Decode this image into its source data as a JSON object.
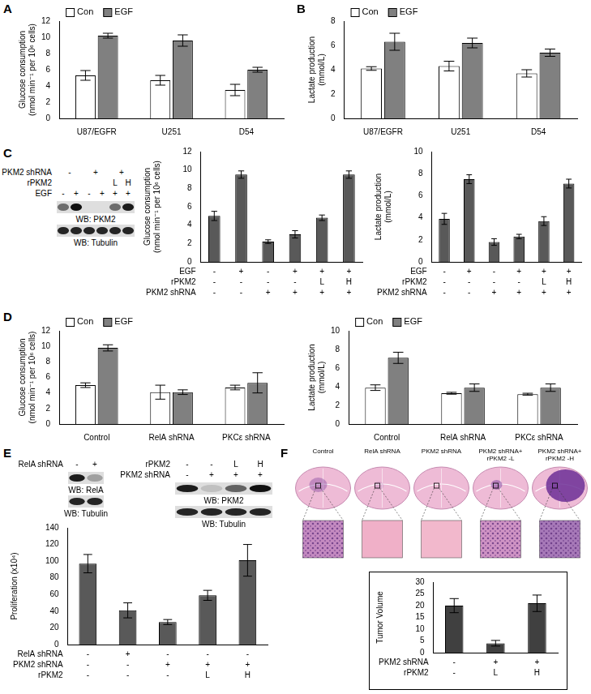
{
  "chart_data": [
    {
      "type": "bar",
      "y_label": [
        "Glucose consumption",
        "(nmol min⁻¹ per 10⁶ cells)"
      ],
      "categories": [
        "U87/EGFR",
        "U251",
        "D54"
      ],
      "series": [
        {
          "name": "Con",
          "color": "#ffffff",
          "values": [
            5.3,
            4.7,
            3.5
          ],
          "errors": [
            0.6,
            0.6,
            0.7
          ]
        },
        {
          "name": "EGF",
          "color": "#808080",
          "values": [
            10.2,
            9.6,
            6.0
          ],
          "errors": [
            0.3,
            0.7,
            0.3
          ]
        }
      ],
      "ylim": [
        0,
        12
      ],
      "yticks": [
        0,
        2,
        4,
        6,
        8,
        10,
        12
      ],
      "grid": false,
      "legend": "top-left"
    },
    {
      "type": "bar",
      "y_label": [
        "Lactate production",
        "(mmol/L)"
      ],
      "categories": [
        "U87/EGFR",
        "U251",
        "D54"
      ],
      "series": [
        {
          "name": "Con",
          "color": "#ffffff",
          "values": [
            4.1,
            4.3,
            3.7
          ],
          "errors": [
            0.15,
            0.4,
            0.3
          ]
        },
        {
          "name": "EGF",
          "color": "#808080",
          "values": [
            6.3,
            6.2,
            5.4
          ],
          "errors": [
            0.7,
            0.4,
            0.3
          ]
        }
      ],
      "ylim": [
        0,
        8
      ],
      "yticks": [
        0,
        2,
        4,
        6,
        8
      ],
      "grid": false,
      "legend": "top-left"
    },
    {
      "type": "bar",
      "y_label": [
        "Glucose consumption",
        "(nmol min⁻¹ per 10⁶ cells)"
      ],
      "categories": [
        null,
        null,
        null,
        null,
        null,
        null
      ],
      "values": [
        5.0,
        9.5,
        2.2,
        3.0,
        4.8,
        9.5
      ],
      "errors": [
        0.5,
        0.4,
        0.2,
        0.4,
        0.3,
        0.4
      ],
      "color": "#595959",
      "ylim": [
        0,
        12
      ],
      "yticks": [
        0,
        2,
        4,
        6,
        8,
        10,
        12
      ],
      "grid": false,
      "conditions": [
        {
          "name": "EGF",
          "marks": [
            "-",
            "+",
            "-",
            "+",
            "+",
            "+"
          ]
        },
        {
          "name": "rPKM2",
          "marks": [
            "-",
            "-",
            "-",
            "-",
            "L",
            "H"
          ]
        },
        {
          "name": "PKM2 shRNA",
          "marks": [
            "-",
            "-",
            "+",
            "+",
            "+",
            "+"
          ]
        }
      ]
    },
    {
      "type": "bar",
      "y_label": [
        "Lactate production",
        "(mmol/L)"
      ],
      "categories": [
        null,
        null,
        null,
        null,
        null,
        null
      ],
      "values": [
        3.9,
        7.5,
        1.8,
        2.3,
        3.7,
        7.1
      ],
      "errors": [
        0.5,
        0.4,
        0.3,
        0.2,
        0.4,
        0.4
      ],
      "color": "#595959",
      "ylim": [
        0,
        10
      ],
      "yticks": [
        0,
        2,
        4,
        6,
        8,
        10
      ],
      "grid": false,
      "conditions": [
        {
          "name": "EGF",
          "marks": [
            "-",
            "+",
            "-",
            "+",
            "+",
            "+"
          ]
        },
        {
          "name": "rPKM2",
          "marks": [
            "-",
            "-",
            "-",
            "-",
            "L",
            "H"
          ]
        },
        {
          "name": "PKM2 shRNA",
          "marks": [
            "-",
            "-",
            "+",
            "+",
            "+",
            "+"
          ]
        }
      ]
    },
    {
      "type": "bar",
      "y_label": [
        "Glucose consumption",
        "(nmol min⁻¹ per 10⁶ cells)"
      ],
      "categories": [
        "Control",
        "RelA shRNA",
        "PKCε shRNA"
      ],
      "series": [
        {
          "name": "Con",
          "color": "#ffffff",
          "values": [
            5.0,
            4.1,
            4.7
          ],
          "errors": [
            0.3,
            0.9,
            0.3
          ]
        },
        {
          "name": "EGF",
          "color": "#808080",
          "values": [
            9.8,
            4.1,
            5.3
          ],
          "errors": [
            0.4,
            0.3,
            1.3
          ]
        }
      ],
      "ylim": [
        0,
        12
      ],
      "yticks": [
        0,
        2,
        4,
        6,
        8,
        10,
        12
      ],
      "grid": false,
      "legend": "top-left"
    },
    {
      "type": "bar",
      "y_label": [
        "Lactate production",
        "(mmol/L)"
      ],
      "categories": [
        "Control",
        "RelA shRNA",
        "PKCε shRNA"
      ],
      "series": [
        {
          "name": "Con",
          "color": "#ffffff",
          "values": [
            3.9,
            3.3,
            3.2
          ],
          "errors": [
            0.3,
            0.1,
            0.1
          ]
        },
        {
          "name": "EGF",
          "color": "#808080",
          "values": [
            7.1,
            3.9,
            3.9
          ],
          "errors": [
            0.6,
            0.4,
            0.4
          ]
        }
      ],
      "ylim": [
        0,
        10
      ],
      "yticks": [
        0,
        2,
        4,
        6,
        8,
        10
      ],
      "grid": false,
      "legend": "top-left"
    },
    {
      "type": "bar",
      "y_label": [
        "Proliferation (x10⁴)"
      ],
      "categories": [
        null,
        null,
        null,
        null,
        null
      ],
      "values": [
        97,
        41,
        27,
        59,
        101
      ],
      "errors": [
        11,
        9,
        3,
        6,
        19
      ],
      "color": "#595959",
      "ylim": [
        0,
        140
      ],
      "yticks": [
        0,
        20,
        40,
        60,
        80,
        100,
        120,
        140
      ],
      "grid": false,
      "conditions": [
        {
          "name": "RelA shRNA",
          "marks": [
            "-",
            "+",
            "-",
            "-",
            "-"
          ]
        },
        {
          "name": "PKM2 shRNA",
          "marks": [
            "-",
            "-",
            "+",
            "+",
            "+"
          ]
        },
        {
          "name": "rPKM2",
          "marks": [
            "-",
            "-",
            "-",
            "L",
            "H"
          ]
        }
      ]
    },
    {
      "type": "bar",
      "y_label": [
        "Tumor Volume"
      ],
      "categories": [
        null,
        null,
        null
      ],
      "values": [
        20,
        4,
        21
      ],
      "errors": [
        3,
        1.2,
        3.5
      ],
      "color": "#404040",
      "ylim": [
        0,
        30
      ],
      "yticks": [
        0,
        5,
        10,
        15,
        20,
        25,
        30
      ],
      "grid": false,
      "conditions": [
        {
          "name": "PKM2 shRNA",
          "marks": [
            "-",
            "+",
            "+"
          ]
        },
        {
          "name": "rPKM2",
          "marks": [
            "-",
            "L",
            "H"
          ]
        }
      ]
    }
  ],
  "figure": {
    "panel_letters": [
      "A",
      "B",
      "C",
      "D",
      "E",
      "F"
    ],
    "blots": [
      {
        "conditions": [
          {
            "name": "PKM2 shRNA",
            "marks": [
              "-",
              null,
              "+",
              null,
              "+",
              null
            ]
          },
          {
            "name": "rPKM2",
            "marks": [
              null,
              null,
              null,
              null,
              "L",
              "H"
            ]
          },
          {
            "name": "EGF",
            "marks": [
              "-",
              "+",
              "-",
              "+",
              "+",
              "+"
            ]
          }
        ],
        "bands": [
          {
            "label": "WB: PKM2",
            "intensity": [
              0.55,
              1,
              0,
              0,
              0.55,
              0.95
            ]
          },
          {
            "label": "WB: Tubulin",
            "intensity": [
              0.9,
              0.9,
              0.9,
              0.9,
              0.9,
              0.9
            ]
          }
        ]
      },
      {
        "conditions": [
          {
            "name": "RelA shRNA",
            "marks": [
              "-",
              "+"
            ]
          }
        ],
        "bands": [
          {
            "label": "WB: RelA",
            "intensity": [
              0.95,
              0.3
            ]
          },
          {
            "label": "WB: Tubulin",
            "intensity": [
              0.9,
              0.9
            ]
          }
        ]
      },
      {
        "conditions": [
          {
            "name": "rPKM2",
            "marks": [
              "-",
              "-",
              "L",
              "H"
            ]
          },
          {
            "name": "PKM2 shRNA",
            "marks": [
              "-",
              "+",
              "+",
              "+"
            ]
          }
        ],
        "bands": [
          {
            "label": "WB: PKM2",
            "intensity": [
              0.95,
              0.15,
              0.6,
              1
            ]
          },
          {
            "label": "WB: Tubulin",
            "intensity": [
              0.9,
              0.9,
              0.9,
              0.9
            ]
          }
        ]
      }
    ],
    "sections": [
      "Control",
      "RelA shRNA",
      "PKM2 shRNA",
      "PKM2 shRNA+ rPKM2 -L",
      "PKM2 shRNA+ rPKM2 -H"
    ]
  }
}
